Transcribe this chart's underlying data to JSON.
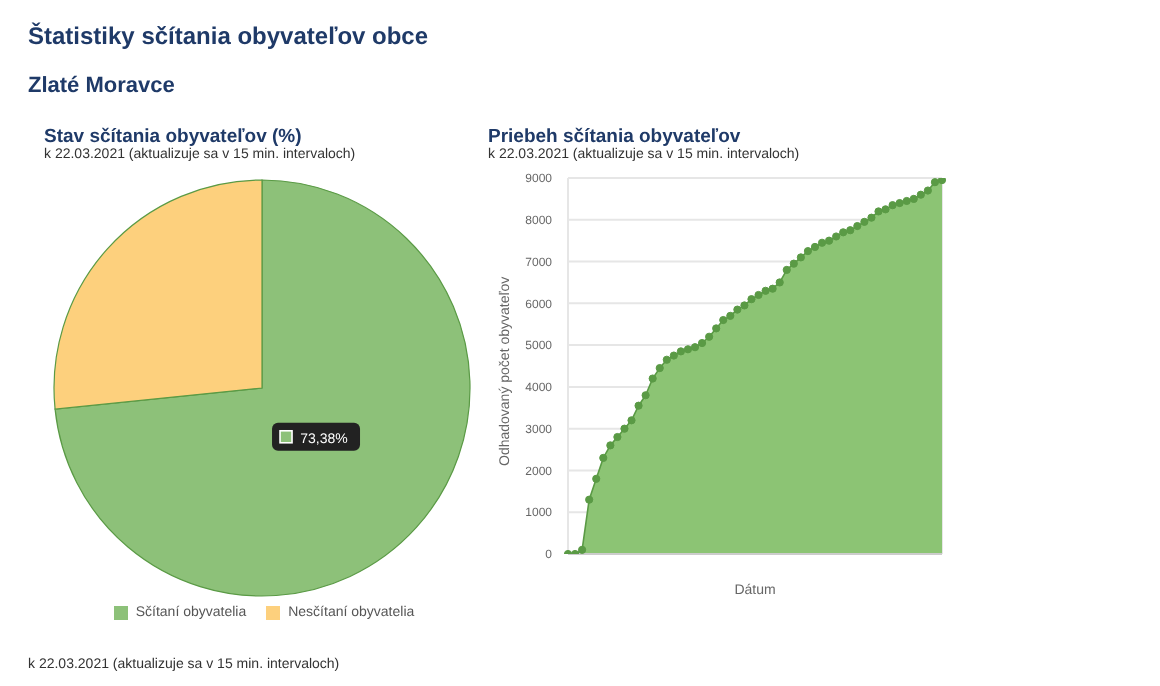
{
  "chart_data": [
    {
      "type": "pie",
      "title": "Stav sčítania obyvateľov (%)",
      "subtitle": "k 22.03.2021 (aktualizuje sa v 15 min. intervaloch)",
      "annotations": [
        "Štatistiky sčítania obyvateľov obce",
        "Zlaté Moravce",
        "k 22.03.2021 (aktualizuje sa v 15 min. intervaloch)"
      ],
      "categories": [
        "Sčítaní obyvatelia",
        "Nesčítaní obyvatelia"
      ],
      "values": [
        73.38,
        26.62
      ],
      "colors": [
        "#8dc179",
        "#fdd07d"
      ],
      "value_labels": [
        "73,38%",
        null
      ],
      "legend": "bottom"
    },
    {
      "type": "area",
      "title": "Priebeh sčítania obyvateľov",
      "subtitle": "k 22.03.2021 (aktualizuje sa v 15 min. intervaloch)",
      "xlabel": "Dátum",
      "ylabel": "Odhadovaný počet obyvateľov",
      "categories": [
        null,
        null,
        null,
        null,
        null,
        null,
        null,
        null,
        null,
        null,
        null,
        null,
        null,
        null,
        null,
        null,
        null,
        null,
        null,
        null,
        null,
        null,
        null,
        null,
        null,
        null,
        null,
        null,
        null,
        null,
        null,
        null,
        null,
        null,
        null,
        null,
        null,
        null,
        null,
        null,
        null,
        null,
        null,
        null,
        null,
        null,
        null,
        null,
        null,
        null,
        null,
        null,
        null,
        null
      ],
      "series": [
        {
          "color": "#8cc474",
          "values": [
            0,
            0,
            100,
            1300,
            1800,
            2300,
            2600,
            2800,
            3000,
            3200,
            3550,
            3800,
            4200,
            4450,
            4650,
            4750,
            4850,
            4900,
            4950,
            5050,
            5200,
            5400,
            5600,
            5700,
            5850,
            5950,
            6100,
            6200,
            6300,
            6350,
            6500,
            6800,
            6950,
            7100,
            7250,
            7350,
            7450,
            7500,
            7600,
            7700,
            7750,
            7850,
            7950,
            8050,
            8200,
            8250,
            8350,
            8400,
            8450,
            8500,
            8600,
            8700,
            8900,
            8950
          ]
        }
      ],
      "ylim": [
        0,
        9000
      ],
      "yticks": [
        0,
        1000,
        2000,
        3000,
        4000,
        5000,
        6000,
        7000,
        8000,
        9000
      ],
      "grid": true,
      "tick_labels": "y",
      "marker": "circle"
    }
  ]
}
